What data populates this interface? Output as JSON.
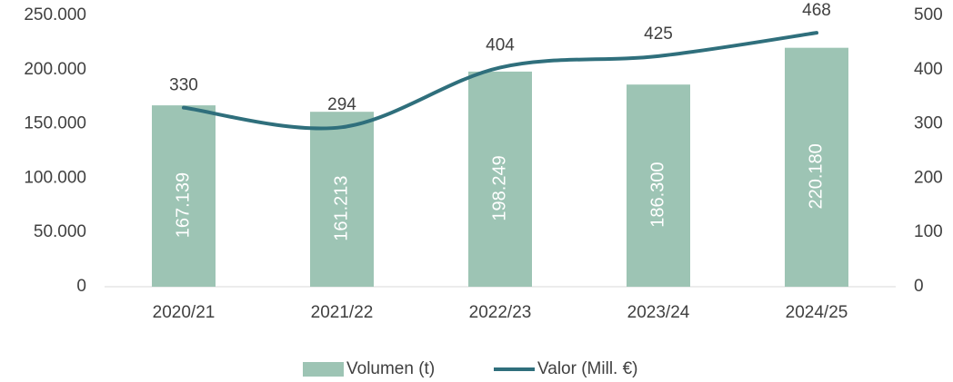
{
  "chart_data": {
    "type": "bar",
    "categories": [
      "2020/21",
      "2021/22",
      "2022/23",
      "2023/24",
      "2024/25"
    ],
    "series": [
      {
        "name": "Volumen (t)",
        "type": "bar",
        "color": "#9dc4b4",
        "values": [
          167139,
          161213,
          198249,
          186300,
          220180
        ],
        "value_labels": [
          "167.139",
          "161.213",
          "198.249",
          "186.300",
          "220.180"
        ]
      },
      {
        "name": "Valor (Mill. €)",
        "type": "line",
        "axis": "y2",
        "color": "#2f6f7c",
        "values": [
          330,
          294,
          404,
          425,
          468
        ]
      }
    ],
    "ylim": [
      0,
      250000
    ],
    "yticks": [
      0,
      {
        "value": 50000,
        "label": "50.000"
      },
      {
        "value": 100000,
        "label": "100.000"
      },
      {
        "value": 150000,
        "label": "150.000"
      },
      {
        "value": 200000,
        "label": "200.000"
      },
      {
        "value": 250000,
        "label": "250.000"
      }
    ],
    "y2lim": [
      0,
      500
    ],
    "y2ticks": [
      0,
      100,
      200,
      300,
      400,
      500
    ],
    "legend": "bottom"
  }
}
